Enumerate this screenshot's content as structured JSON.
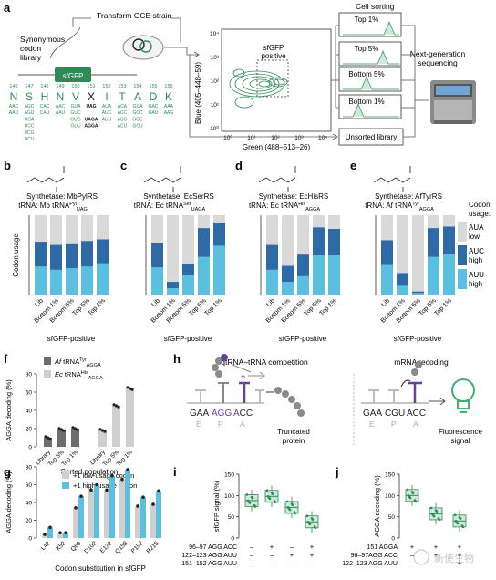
{
  "panel_a": {
    "letter": "a",
    "library_label": [
      "Synonymous",
      "codon",
      "library"
    ],
    "gene_label": "sfGFP",
    "transform_label": "Transform GCE strain",
    "sorting_label": "Cell sorting",
    "plot_region_label": [
      "sfGFP",
      "positive"
    ],
    "y_axis_label": "Blue (405–448–59)",
    "x_axis_label": "Green (488–513–26)",
    "y_ticks": [
      "10⁴",
      "10³",
      "10²",
      "10¹",
      "10⁰"
    ],
    "x_ticks": [
      "10⁰",
      "10¹",
      "10²",
      "10³",
      "10⁴"
    ],
    "bins": [
      "Top 1%",
      "Top 5%",
      "Bottom 5%",
      "Bottom 1%"
    ],
    "unsorted_label": "Unsorted library",
    "ngs_label": [
      "Next-generation",
      "sequencing"
    ],
    "positions": [
      "146",
      "147",
      "148",
      "149",
      "150",
      "151",
      "152",
      "153",
      "154",
      "155",
      "156"
    ],
    "residues": [
      "N",
      "S",
      "H",
      "N",
      "V",
      "X",
      "I",
      "T",
      "A",
      "D",
      "K"
    ],
    "codon_columns": [
      [
        "AAC",
        "AAU"
      ],
      [
        "AGC",
        "AGU",
        "UCA",
        "UCC",
        "UCG",
        "UCU"
      ],
      [
        "CAC",
        "CAU"
      ],
      [
        "AAC",
        "AAU"
      ],
      [
        "GUA",
        "GUC",
        "GUG",
        "GUU"
      ],
      [
        "UAG",
        "",
        "UAGA",
        "AGGA"
      ],
      [
        "AUA",
        "AUC",
        "AUU"
      ],
      [
        "ACA",
        "ACC",
        "ACG",
        "ACU"
      ],
      [
        "GCA",
        "GCC",
        "GCG",
        "GCU"
      ],
      [
        "GAC",
        "GAU"
      ],
      [
        "AAA",
        "AAG"
      ]
    ]
  },
  "codon_legend": {
    "title": [
      "Codon",
      "usage:"
    ],
    "items": [
      {
        "label": [
          "AUA",
          "low"
        ],
        "color": "#d9d9d9"
      },
      {
        "label": [
          "AUC",
          "high"
        ],
        "color": "#2e6aa6"
      },
      {
        "label": [
          "AUU",
          "high"
        ],
        "color": "#5bbfe0"
      }
    ]
  },
  "panels_bcde": [
    {
      "letter": "b",
      "line1": "Synthetase: MbPylRS",
      "line2": "tRNA: Mb tRNA",
      "sup": "Pyl",
      "sub": "UAG",
      "ylabel": "Codon usage",
      "structure": "pyrrolysine-analog-structure"
    },
    {
      "letter": "c",
      "line1": "Synthetase: EcSerRS",
      "line2": "tRNA: Ec tRNA",
      "sup": "Ser",
      "sub": "UAGA",
      "ylabel": "",
      "structure": "serine-structure"
    },
    {
      "letter": "d",
      "line1": "Synthetase: EcHisRS",
      "line2": "tRNA: Ec tRNA",
      "sup": "His",
      "sub": "AGGA",
      "ylabel": "",
      "structure": "histidine-structure"
    },
    {
      "letter": "e",
      "line1": "Synthetase: AfTyrRS",
      "line2": "tRNA: Af tRNA",
      "sup": "Tyr",
      "sub": "AGGA",
      "ylabel": "",
      "structure": "iodotyrosine-structure"
    }
  ],
  "bcde_xlabel": "sfGFP-positive",
  "chart_data": [
    {
      "type": "bar",
      "panel": "b",
      "stacked": true,
      "categories": [
        "Lib",
        "Bottom 1%",
        "Bottom 5%",
        "Top 5%",
        "Top 1%"
      ],
      "ylabel": "Codon usage",
      "series": [
        {
          "name": "AUU high",
          "values": [
            0.36,
            0.32,
            0.34,
            0.36,
            0.4
          ]
        },
        {
          "name": "AUC high",
          "values": [
            0.31,
            0.31,
            0.3,
            0.32,
            0.3
          ]
        },
        {
          "name": "AUA low",
          "values": [
            0.33,
            0.37,
            0.36,
            0.32,
            0.3
          ]
        }
      ]
    },
    {
      "type": "bar",
      "panel": "c",
      "stacked": true,
      "categories": [
        "Lib",
        "Bottom 1%",
        "Bottom 5%",
        "Top 5%",
        "Top 1%"
      ],
      "series": [
        {
          "name": "AUU high",
          "values": [
            0.35,
            0.09,
            0.25,
            0.48,
            0.62
          ]
        },
        {
          "name": "AUC high",
          "values": [
            0.3,
            0.08,
            0.15,
            0.36,
            0.29
          ]
        },
        {
          "name": "AUA low",
          "values": [
            0.35,
            0.83,
            0.6,
            0.16,
            0.09
          ]
        }
      ]
    },
    {
      "type": "bar",
      "panel": "d",
      "stacked": true,
      "categories": [
        "Lib",
        "Bottom 1%",
        "Bottom 5%",
        "Top 5%",
        "Top 1%"
      ],
      "series": [
        {
          "name": "AUU high",
          "values": [
            0.32,
            0.17,
            0.24,
            0.5,
            0.5
          ]
        },
        {
          "name": "AUC high",
          "values": [
            0.31,
            0.2,
            0.27,
            0.35,
            0.33
          ]
        },
        {
          "name": "AUA low",
          "values": [
            0.37,
            0.63,
            0.49,
            0.15,
            0.17
          ]
        }
      ]
    },
    {
      "type": "bar",
      "panel": "e",
      "stacked": true,
      "categories": [
        "Lib",
        "Bottom 1%",
        "Bottom 5%",
        "Top 5%",
        "Top 1%"
      ],
      "series": [
        {
          "name": "AUU high",
          "values": [
            0.38,
            0.12,
            0.03,
            0.48,
            0.51
          ]
        },
        {
          "name": "AUC high",
          "values": [
            0.31,
            0.16,
            0.02,
            0.36,
            0.35
          ]
        },
        {
          "name": "AUA low",
          "values": [
            0.31,
            0.72,
            0.95,
            0.16,
            0.14
          ]
        }
      ]
    },
    {
      "type": "bar",
      "panel": "f",
      "categories": [
        "Library",
        "Top 5%",
        "Top 1%"
      ],
      "ylabel": "AGGA decoding (%)",
      "xlabel": "Sorted population",
      "ylim": [
        0,
        80
      ],
      "series": [
        {
          "name": "Af tRNA Tyr AGGA",
          "values": [
            10,
            19,
            20
          ],
          "color": "#6e6e6e"
        },
        {
          "name": "Ec tRNA His AGGA",
          "values": [
            18,
            45,
            64
          ],
          "color": "#cfcfcf"
        }
      ]
    },
    {
      "type": "bar",
      "panel": "g",
      "categories": [
        "L42",
        "K52",
        "Q69",
        "D102",
        "E132",
        "Q158",
        "P192",
        "R215"
      ],
      "ylabel": "AGGA decoding (%)",
      "xlabel": "Codon substitution in sfGFP",
      "ylim": [
        0,
        80
      ],
      "series": [
        {
          "name": "+1 low-usage codon",
          "values": [
            4,
            6,
            34,
            54,
            54,
            66,
            36,
            38
          ],
          "color": "#cfcfcf"
        },
        {
          "name": "+1 high-usage codon",
          "values": [
            12,
            6,
            47,
            60,
            70,
            77,
            46,
            53
          ],
          "color": "#5bbfe0"
        }
      ]
    },
    {
      "type": "box",
      "panel": "i",
      "ylabel": "sfGFP signal (%)",
      "ylim": [
        0,
        150
      ],
      "groups": [
        "1",
        "2",
        "3",
        "4"
      ],
      "medians": [
        88,
        98,
        72,
        38
      ],
      "conditions": [
        {
          "label": "96–97 AGG ACC",
          "marks": [
            "–",
            "+",
            "–",
            "+"
          ]
        },
        {
          "label": "122–123 AGG AUU",
          "marks": [
            "–",
            "–",
            "+",
            "+"
          ]
        },
        {
          "label": "151–152 AGG AUU",
          "marks": [
            "–",
            "–",
            "–",
            "–"
          ]
        }
      ]
    },
    {
      "type": "box",
      "panel": "j",
      "ylabel": "AGGA decoding (%)",
      "ylim": [
        0,
        150
      ],
      "groups": [
        "1",
        "2",
        "3"
      ],
      "medians": [
        100,
        57,
        40
      ],
      "conditions": [
        {
          "label": "151 AGGA",
          "marks": [
            "+",
            "+",
            "+"
          ]
        },
        {
          "label": "96–97AGG ACC",
          "marks": [
            "–",
            "+",
            "+"
          ]
        },
        {
          "label": "122–123 AGG AUU",
          "marks": [
            "–",
            "–",
            "+"
          ]
        }
      ]
    }
  ],
  "panel_f": {
    "letter": "f",
    "legend": [
      {
        "pre": "Af",
        "text": " tRNA",
        "sup": "Tyr",
        "sub": "AGGA",
        "color": "#6e6e6e"
      },
      {
        "pre": "Ec",
        "text": " tRNA",
        "sup": "His",
        "sub": "AGGA",
        "color": "#cfcfcf"
      }
    ]
  },
  "panel_g": {
    "letter": "g"
  },
  "panel_h": {
    "letter": "h",
    "left_title": "qtRNA–tRNA competition",
    "right_title": "mRNA recoding",
    "left_codons": [
      "GAA",
      "AGG",
      "ACC"
    ],
    "right_codons": [
      "GAA",
      "CGU",
      "ACC"
    ],
    "sites": [
      "E",
      "P",
      "A"
    ],
    "left_outcome": [
      "Truncated",
      "protein"
    ],
    "right_outcome": [
      "Fluorescence",
      "signal"
    ],
    "question": "?"
  },
  "panel_i": {
    "letter": "i"
  },
  "panel_j": {
    "letter": "j"
  },
  "watermark": "新使生物",
  "colors": {
    "purple": "#6b3fa0",
    "green": "#2e8b57",
    "accent": "#5bbfe0",
    "dark_blue": "#2e6aa6",
    "grey": "#d9d9d9"
  }
}
